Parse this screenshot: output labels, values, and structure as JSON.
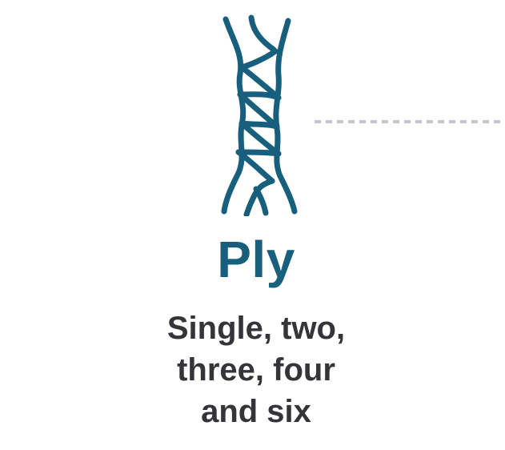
{
  "title": "Ply",
  "description": [
    "Single, two,",
    "three, four",
    "and six"
  ],
  "icons": {
    "yarn": "twisted-yarn-icon",
    "connector": "dotted-connector-line"
  },
  "colors": {
    "accent": "#175f7c",
    "text": "#343538",
    "connector": "#c5c7cc",
    "background": "#ffffff"
  }
}
